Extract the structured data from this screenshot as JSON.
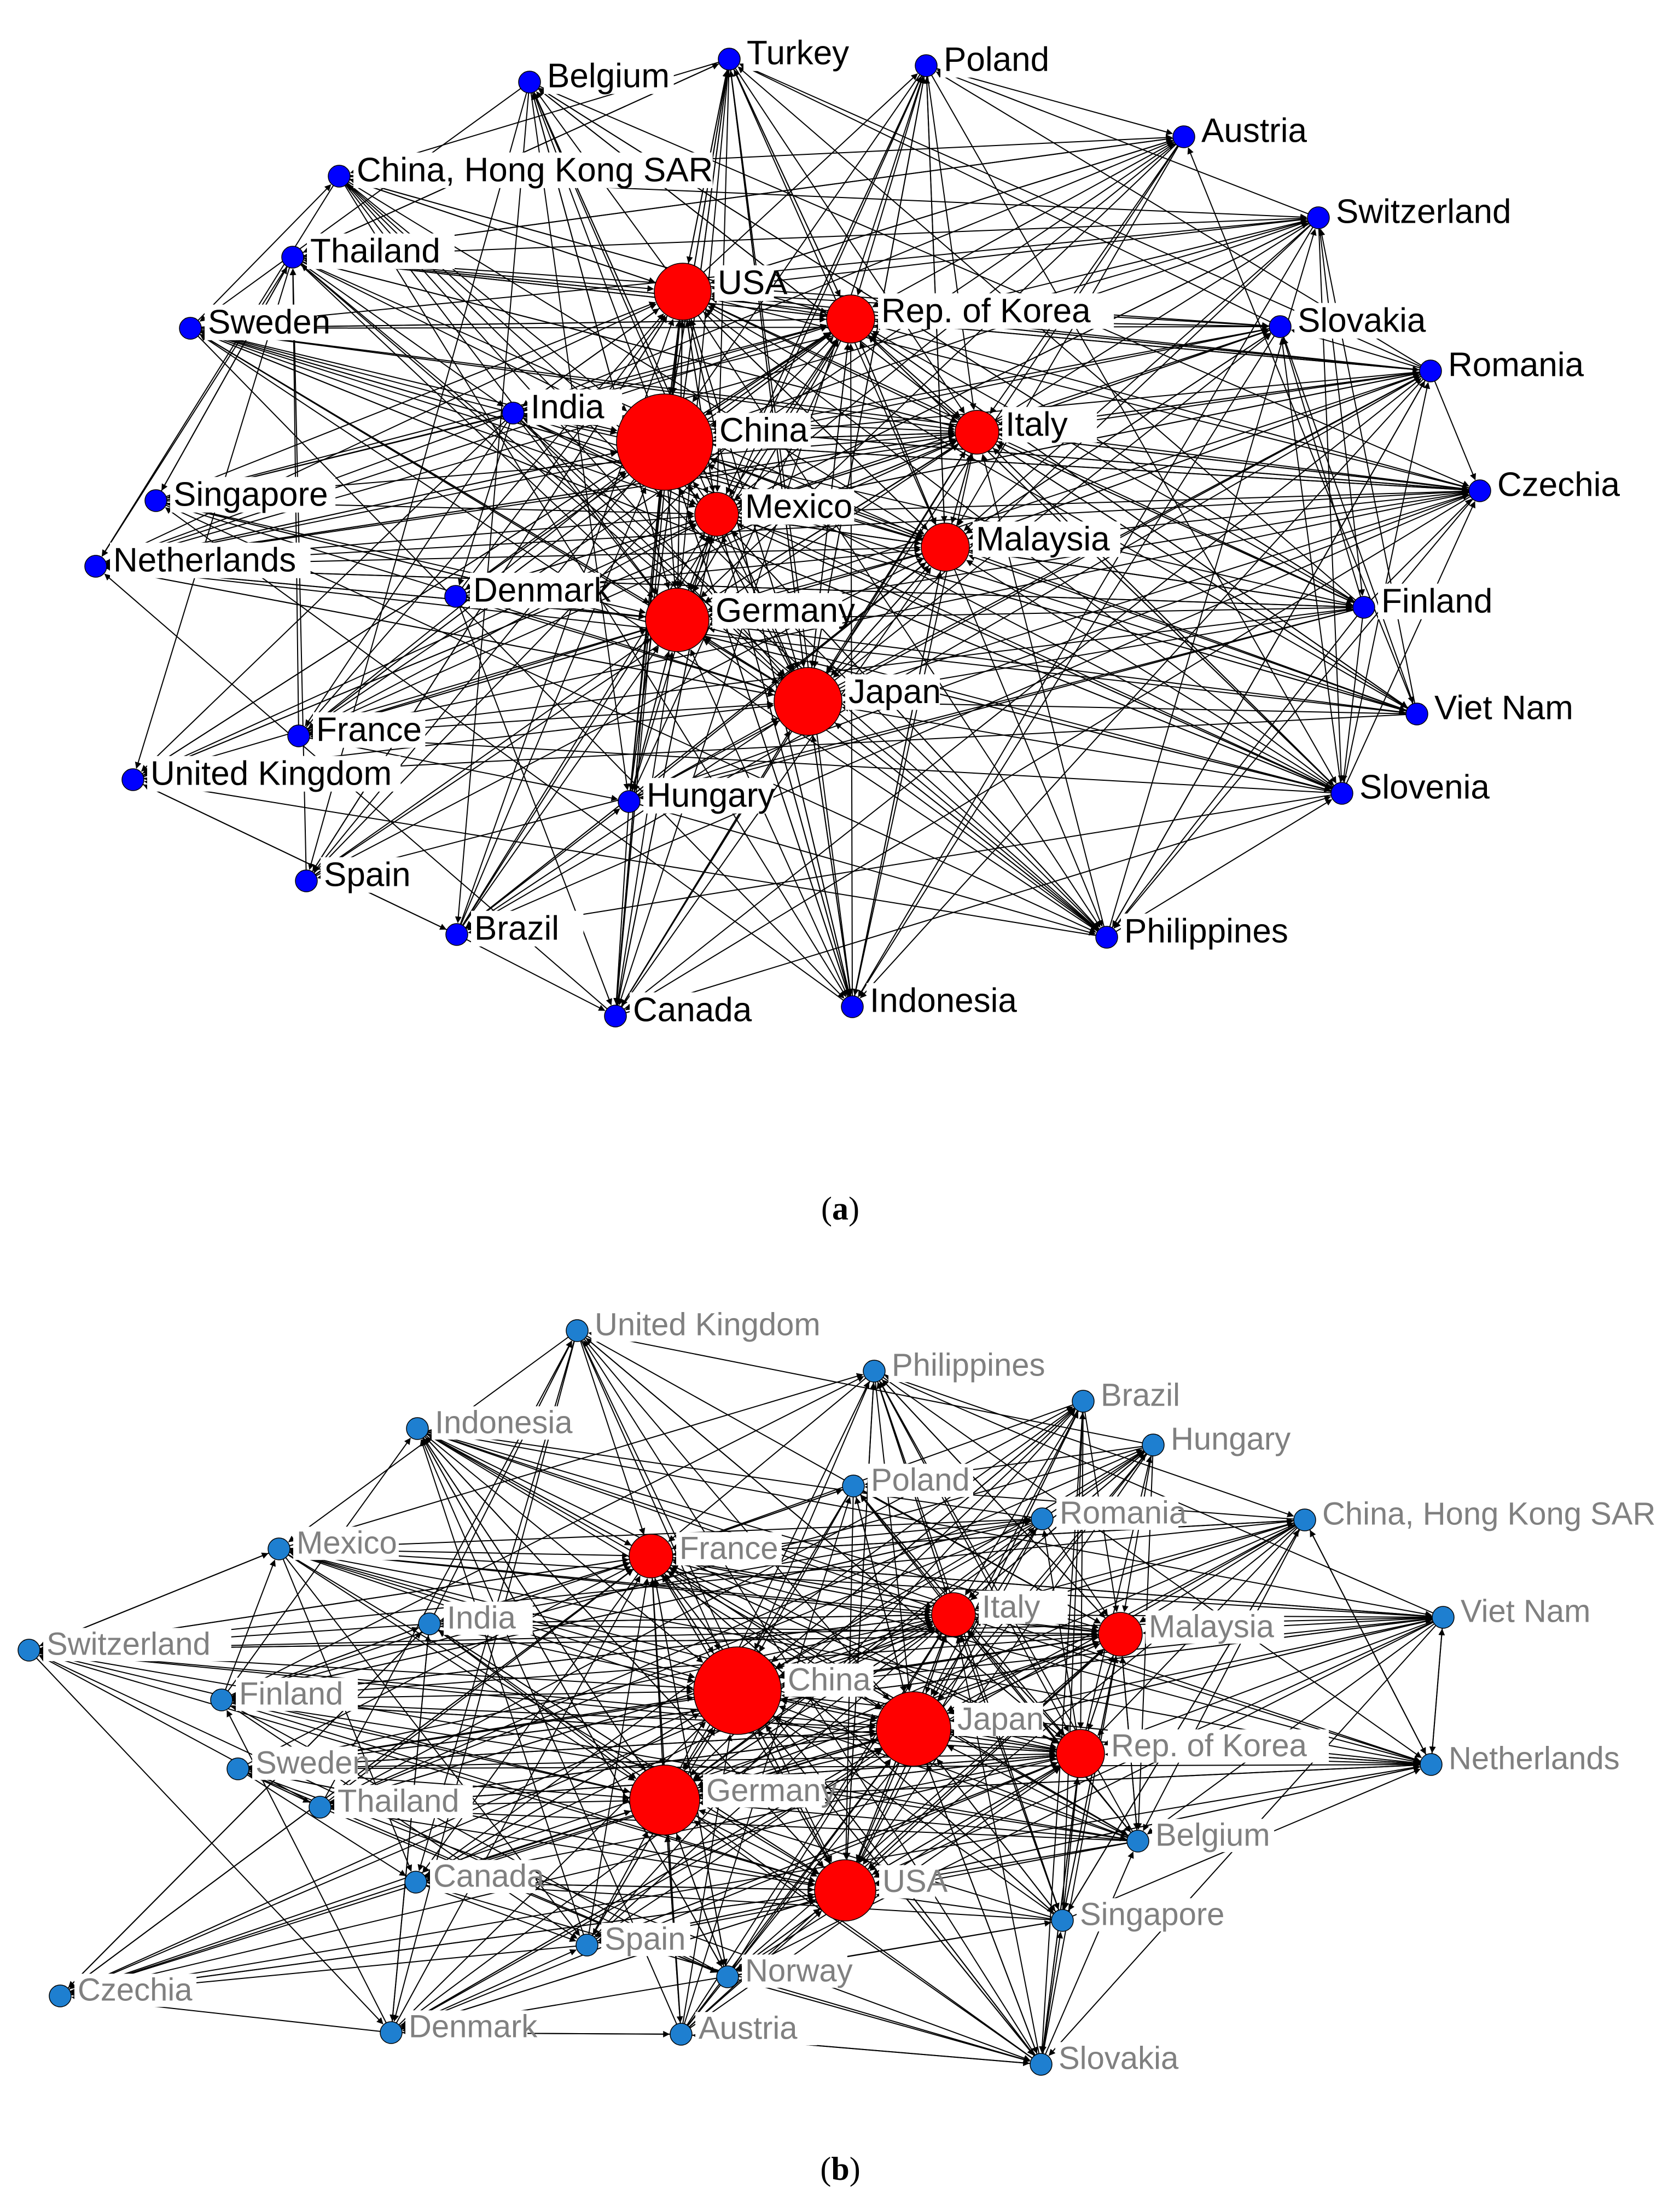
{
  "panels": [
    {
      "id": "a",
      "caption_letter": "a",
      "label_color": "#000000",
      "label_bg": "#ffffff",
      "core_color": "#ff0000",
      "periphery_color": "#0000ff",
      "nodes": [
        {
          "name": "Belgium",
          "role": "periphery"
        },
        {
          "name": "Turkey",
          "role": "periphery"
        },
        {
          "name": "Poland",
          "role": "periphery"
        },
        {
          "name": "Austria",
          "role": "periphery"
        },
        {
          "name": "China, Hong Kong SAR",
          "role": "periphery"
        },
        {
          "name": "Switzerland",
          "role": "periphery"
        },
        {
          "name": "Thailand",
          "role": "periphery"
        },
        {
          "name": "USA",
          "role": "core"
        },
        {
          "name": "Rep. of Korea",
          "role": "core"
        },
        {
          "name": "Sweden",
          "role": "periphery"
        },
        {
          "name": "Slovakia",
          "role": "periphery"
        },
        {
          "name": "Romania",
          "role": "periphery"
        },
        {
          "name": "India",
          "role": "periphery"
        },
        {
          "name": "China",
          "role": "core"
        },
        {
          "name": "Italy",
          "role": "core"
        },
        {
          "name": "Singapore",
          "role": "periphery"
        },
        {
          "name": "Mexico",
          "role": "core"
        },
        {
          "name": "Czechia",
          "role": "periphery"
        },
        {
          "name": "Netherlands",
          "role": "periphery"
        },
        {
          "name": "Malaysia",
          "role": "core"
        },
        {
          "name": "Denmark",
          "role": "periphery"
        },
        {
          "name": "Germany",
          "role": "core"
        },
        {
          "name": "Finland",
          "role": "periphery"
        },
        {
          "name": "Japan",
          "role": "core"
        },
        {
          "name": "France",
          "role": "periphery"
        },
        {
          "name": "Viet Nam",
          "role": "periphery"
        },
        {
          "name": "United Kingdom",
          "role": "periphery"
        },
        {
          "name": "Hungary",
          "role": "periphery"
        },
        {
          "name": "Slovenia",
          "role": "periphery"
        },
        {
          "name": "Spain",
          "role": "periphery"
        },
        {
          "name": "Brazil",
          "role": "periphery"
        },
        {
          "name": "Philippines",
          "role": "periphery"
        },
        {
          "name": "Canada",
          "role": "periphery"
        },
        {
          "name": "Indonesia",
          "role": "periphery"
        }
      ]
    },
    {
      "id": "b",
      "caption_letter": "b",
      "label_color": "#808080",
      "label_bg": "#ffffff",
      "core_color": "#ff0000",
      "periphery_color": "#1e7fd0",
      "nodes": [
        {
          "name": "United Kingdom",
          "role": "periphery"
        },
        {
          "name": "Philippines",
          "role": "periphery"
        },
        {
          "name": "Brazil",
          "role": "periphery"
        },
        {
          "name": "Indonesia",
          "role": "periphery"
        },
        {
          "name": "Hungary",
          "role": "periphery"
        },
        {
          "name": "Poland",
          "role": "periphery"
        },
        {
          "name": "China, Hong Kong SAR",
          "role": "periphery"
        },
        {
          "name": "Romania",
          "role": "periphery"
        },
        {
          "name": "Mexico",
          "role": "periphery"
        },
        {
          "name": "France",
          "role": "core"
        },
        {
          "name": "Italy",
          "role": "core"
        },
        {
          "name": "Malaysia",
          "role": "core"
        },
        {
          "name": "Viet Nam",
          "role": "periphery"
        },
        {
          "name": "Switzerland",
          "role": "periphery"
        },
        {
          "name": "India",
          "role": "periphery"
        },
        {
          "name": "China",
          "role": "core"
        },
        {
          "name": "Finland",
          "role": "periphery"
        },
        {
          "name": "Japan",
          "role": "core"
        },
        {
          "name": "Rep. of Korea",
          "role": "core"
        },
        {
          "name": "Sweden",
          "role": "periphery"
        },
        {
          "name": "Germany",
          "role": "core"
        },
        {
          "name": "Netherlands",
          "role": "periphery"
        },
        {
          "name": "Thailand",
          "role": "periphery"
        },
        {
          "name": "Belgium",
          "role": "periphery"
        },
        {
          "name": "Canada",
          "role": "periphery"
        },
        {
          "name": "USA",
          "role": "core"
        },
        {
          "name": "Singapore",
          "role": "periphery"
        },
        {
          "name": "Spain",
          "role": "periphery"
        },
        {
          "name": "Norway",
          "role": "periphery"
        },
        {
          "name": "Czechia",
          "role": "periphery"
        },
        {
          "name": "Denmark",
          "role": "periphery"
        },
        {
          "name": "Austria",
          "role": "periphery"
        },
        {
          "name": "Slovakia",
          "role": "periphery"
        }
      ]
    }
  ]
}
